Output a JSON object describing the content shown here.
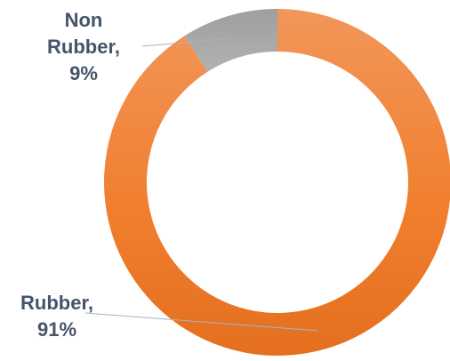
{
  "chart_data": {
    "type": "pie",
    "style": "donut",
    "title": "",
    "series": [
      {
        "values": [
          91,
          9
        ],
        "categories": [
          "Rubber",
          "Non Rubber"
        ],
        "colors": [
          "#ef7d2d",
          "#a6a6a6"
        ]
      }
    ],
    "slices": [
      {
        "name": "Rubber",
        "value": 91,
        "color": "#ef7d2d",
        "label_lines": [
          "Rubber,",
          "91%"
        ]
      },
      {
        "name": "Non Rubber",
        "value": 9,
        "color": "#a6a6a6",
        "label_lines": [
          "Non",
          "Rubber,",
          "9%"
        ]
      }
    ],
    "legend": "none",
    "start_angle": "12 o'clock",
    "direction": "clockwise"
  }
}
